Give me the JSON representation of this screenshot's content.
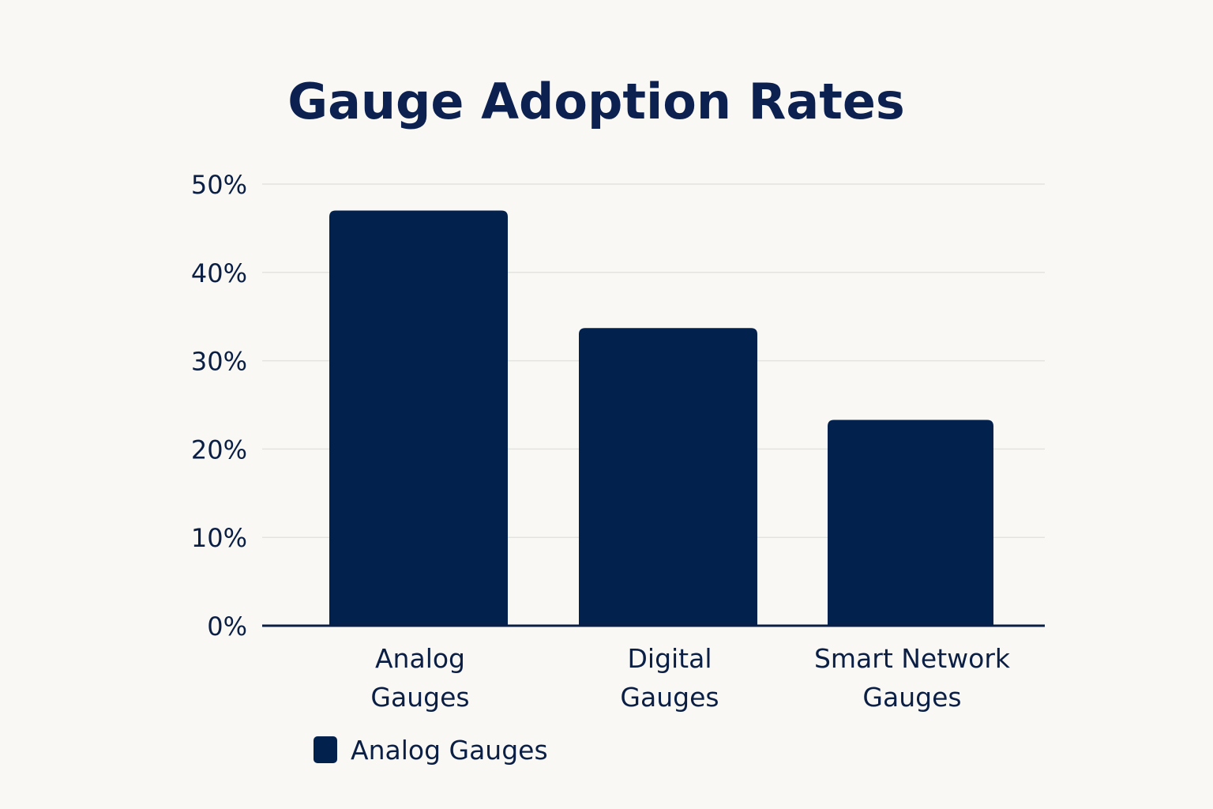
{
  "chart_data": {
    "type": "bar",
    "title": "Gauge Adoption Rates",
    "categories": [
      "Analog Gauges",
      "Digital Gauges",
      "Smart Network Gauges"
    ],
    "category_lines": [
      [
        "Analog",
        "Gauges"
      ],
      [
        "Digital",
        "Gauges"
      ],
      [
        "Smart Network",
        "Gauges"
      ]
    ],
    "series": [
      {
        "name": "Analog Gauges",
        "values": [
          47,
          33.7,
          23.3
        ]
      }
    ],
    "ylim": [
      0,
      50
    ],
    "yticks": [
      0,
      10,
      20,
      30,
      40,
      50
    ],
    "ytick_labels": [
      "0%",
      "10%",
      "20%",
      "30%",
      "40%",
      "50%"
    ],
    "xlabel": "",
    "ylabel": "",
    "grid": true,
    "legend_position": "bottom-left"
  },
  "colors": {
    "bar": "#03214d",
    "text": "#0b1f45",
    "title": "#0d2150",
    "grid": "#e3e3e0",
    "axis": "#0b1f45",
    "background": "#f9f8f5"
  }
}
